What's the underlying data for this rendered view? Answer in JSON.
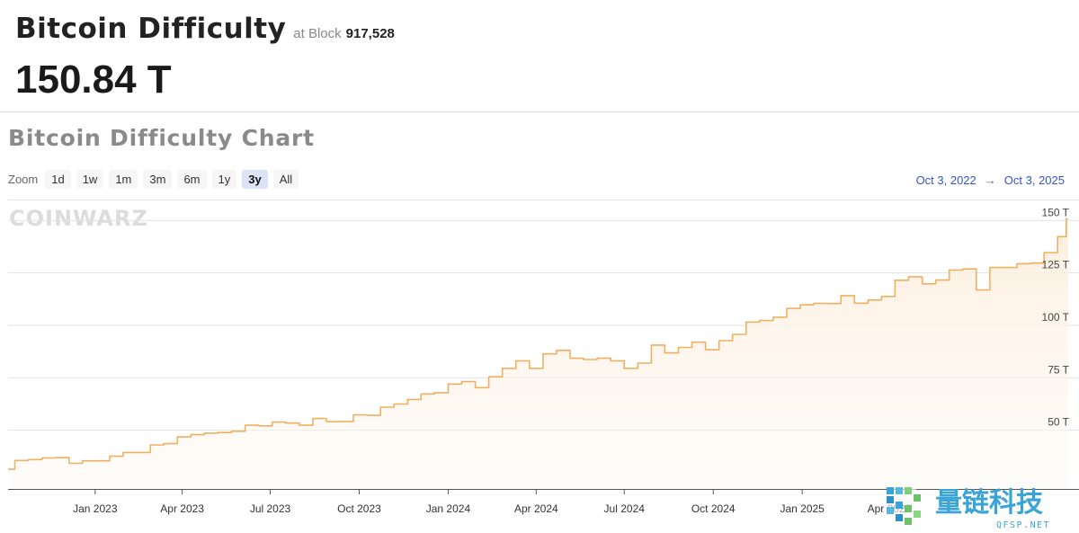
{
  "header": {
    "title": "Bitcoin Difficulty",
    "at_block_label": "at Block",
    "block_number": "917,528",
    "current_value": "150.84 T"
  },
  "chart_section": {
    "title": "Bitcoin Difficulty Chart",
    "zoom_label": "Zoom",
    "zoom_options": [
      "1d",
      "1w",
      "1m",
      "3m",
      "6m",
      "1y",
      "3y",
      "All"
    ],
    "zoom_active": "3y",
    "range_from": "Oct 3, 2022",
    "range_arrow": "→",
    "range_to": "Oct 3, 2025",
    "watermark": "COINWARZ"
  },
  "logo": {
    "text": "量链科技",
    "subtext": "QFSP.NET",
    "colors": [
      "#3aa3d8",
      "#6cc16a"
    ]
  },
  "colors": {
    "line": "#f0b060",
    "area": "#fdf1e2",
    "grid": "#e2e2e2",
    "accent": "#3355cc"
  },
  "chart_data": {
    "type": "area",
    "title": "Bitcoin Difficulty Chart",
    "xlabel": "",
    "ylabel": "",
    "x_tick_labels": [
      "Jan 2023",
      "Apr 2023",
      "Jul 2023",
      "Oct 2023",
      "Jan 2024",
      "Apr 2024",
      "Jul 2024",
      "Oct 2024",
      "Jan 2025",
      "Apr 2025"
    ],
    "y_tick_labels": [
      "50 T",
      "75 T",
      "100 T",
      "125 T",
      "150 T"
    ],
    "y_ticks": [
      50,
      75,
      100,
      125,
      150
    ],
    "ylim": [
      22,
      160
    ],
    "xlim": [
      "2022-10-03",
      "2025-10-03"
    ],
    "grid": true,
    "series": [
      {
        "values": [
          [
            "2022-10-03",
            31.4
          ],
          [
            "2022-10-10",
            35.6
          ],
          [
            "2022-10-24",
            36.0
          ],
          [
            "2022-11-07",
            36.8
          ],
          [
            "2022-11-21",
            36.9
          ],
          [
            "2022-12-05",
            34.2
          ],
          [
            "2022-12-19",
            35.4
          ],
          [
            "2023-01-02",
            35.4
          ],
          [
            "2023-01-16",
            37.6
          ],
          [
            "2023-01-30",
            39.4
          ],
          [
            "2023-02-13",
            39.4
          ],
          [
            "2023-02-27",
            43.0
          ],
          [
            "2023-03-13",
            43.6
          ],
          [
            "2023-03-27",
            46.8
          ],
          [
            "2023-04-10",
            47.9
          ],
          [
            "2023-04-24",
            48.6
          ],
          [
            "2023-05-08",
            48.9
          ],
          [
            "2023-05-22",
            49.5
          ],
          [
            "2023-06-05",
            52.4
          ],
          [
            "2023-06-19",
            52.1
          ],
          [
            "2023-07-03",
            53.9
          ],
          [
            "2023-07-17",
            53.4
          ],
          [
            "2023-07-31",
            52.4
          ],
          [
            "2023-08-14",
            55.6
          ],
          [
            "2023-08-28",
            54.1
          ],
          [
            "2023-09-11",
            54.2
          ],
          [
            "2023-09-25",
            57.3
          ],
          [
            "2023-10-09",
            57.1
          ],
          [
            "2023-10-23",
            61.0
          ],
          [
            "2023-11-06",
            62.5
          ],
          [
            "2023-11-20",
            64.7
          ],
          [
            "2023-12-04",
            67.3
          ],
          [
            "2023-12-18",
            67.9
          ],
          [
            "2024-01-01",
            72.0
          ],
          [
            "2024-01-15",
            73.2
          ],
          [
            "2024-01-29",
            70.3
          ],
          [
            "2024-02-12",
            75.5
          ],
          [
            "2024-02-26",
            79.5
          ],
          [
            "2024-03-11",
            83.1
          ],
          [
            "2024-03-25",
            79.5
          ],
          [
            "2024-04-08",
            86.4
          ],
          [
            "2024-04-22",
            88.1
          ],
          [
            "2024-05-06",
            84.3
          ],
          [
            "2024-05-20",
            83.7
          ],
          [
            "2024-06-03",
            84.4
          ],
          [
            "2024-06-17",
            83.1
          ],
          [
            "2024-07-01",
            79.5
          ],
          [
            "2024-07-15",
            82.0
          ],
          [
            "2024-07-29",
            90.6
          ],
          [
            "2024-08-12",
            86.9
          ],
          [
            "2024-08-26",
            89.5
          ],
          [
            "2024-09-09",
            92.0
          ],
          [
            "2024-09-23",
            88.4
          ],
          [
            "2024-10-07",
            92.7
          ],
          [
            "2024-10-21",
            95.7
          ],
          [
            "2024-11-04",
            101.6
          ],
          [
            "2024-11-18",
            102.3
          ],
          [
            "2024-12-02",
            103.9
          ],
          [
            "2024-12-16",
            108.1
          ],
          [
            "2024-12-30",
            109.8
          ],
          [
            "2025-01-13",
            110.5
          ],
          [
            "2025-01-27",
            110.4
          ],
          [
            "2025-02-10",
            114.2
          ],
          [
            "2025-02-24",
            110.6
          ],
          [
            "2025-03-10",
            112.1
          ],
          [
            "2025-03-24",
            113.8
          ],
          [
            "2025-04-07",
            121.5
          ],
          [
            "2025-04-21",
            123.2
          ],
          [
            "2025-05-05",
            119.8
          ],
          [
            "2025-05-19",
            121.6
          ],
          [
            "2025-06-02",
            126.4
          ],
          [
            "2025-06-16",
            126.9
          ],
          [
            "2025-06-30",
            116.9
          ],
          [
            "2025-07-14",
            127.6
          ],
          [
            "2025-07-28",
            127.6
          ],
          [
            "2025-08-11",
            129.4
          ],
          [
            "2025-08-25",
            129.7
          ],
          [
            "2025-09-08",
            134.7
          ],
          [
            "2025-09-22",
            142.3
          ],
          [
            "2025-10-01",
            150.8
          ]
        ]
      }
    ]
  }
}
